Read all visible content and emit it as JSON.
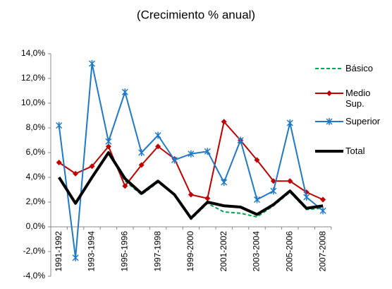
{
  "chart_data": {
    "type": "line",
    "title": "(Crecimiento % anual)",
    "categories": [
      "1991-1992",
      null,
      "1993-1994",
      null,
      "1995-1996",
      null,
      "1997-1998",
      null,
      "1999-2000",
      null,
      "2001-2002",
      null,
      "2003-2004",
      null,
      "2005-2006",
      null,
      "2007-2008"
    ],
    "series": [
      {
        "name": "Básico",
        "color": "#00a651",
        "values": [
          4.0,
          1.9,
          4.0,
          6.0,
          3.7,
          2.6,
          3.6,
          2.6,
          0.6,
          1.9,
          1.2,
          1.1,
          0.8,
          1.7,
          2.8,
          1.4,
          1.5
        ]
      },
      {
        "name": "Medio Sup.",
        "color": "#c00000",
        "values": [
          5.2,
          4.3,
          4.9,
          6.5,
          3.3,
          5.0,
          6.5,
          5.5,
          2.6,
          2.3,
          8.5,
          7.0,
          5.4,
          3.7,
          3.7,
          2.8,
          2.2
        ]
      },
      {
        "name": "Superior",
        "color": "#1f78c8",
        "values": [
          8.2,
          -2.5,
          13.2,
          6.9,
          10.9,
          6.0,
          7.4,
          5.4,
          5.9,
          6.1,
          3.6,
          7.0,
          2.2,
          2.9,
          8.4,
          2.4,
          1.3
        ]
      },
      {
        "name": "Total",
        "color": "#000000",
        "values": [
          4.0,
          1.9,
          4.0,
          6.0,
          3.9,
          2.7,
          3.7,
          2.6,
          0.7,
          2.0,
          1.7,
          1.6,
          1.0,
          1.8,
          2.9,
          1.5,
          1.7
        ]
      }
    ],
    "ylim": [
      -4,
      14
    ],
    "yticks": [
      {
        "value": -4,
        "label": "-4,0%"
      },
      {
        "value": -2,
        "label": "-2,0%"
      },
      {
        "value": 0,
        "label": "0,0%"
      },
      {
        "value": 2,
        "label": "2,0%"
      },
      {
        "value": 4,
        "label": "4,0%"
      },
      {
        "value": 6,
        "label": "6,0%"
      },
      {
        "value": 8,
        "label": "8,0%"
      },
      {
        "value": 10,
        "label": "10,0%"
      },
      {
        "value": 12,
        "label": "12,0%"
      },
      {
        "value": 14,
        "label": "14,0%"
      }
    ],
    "legend": "right"
  }
}
